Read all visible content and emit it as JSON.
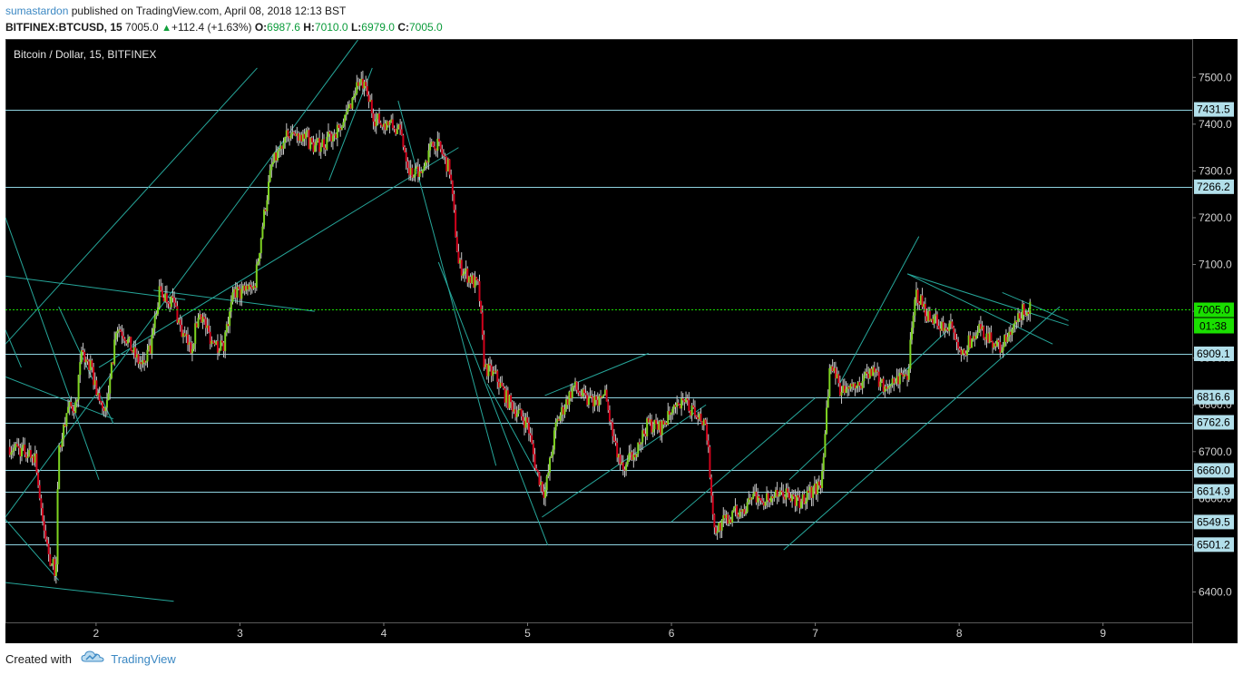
{
  "header": {
    "author": "sumastardon",
    "published_text": "published on TradingView.com, April 08, 2018 12:13 BST",
    "symbol": "BITFINEX:BTCUSD, 15",
    "last": "7005.0",
    "change": "+112.4 (+1.63%)",
    "o_label": "O:",
    "o_value": "6987.6",
    "h_label": "H:",
    "h_value": "7010.0",
    "l_label": "L:",
    "l_value": "6979.0",
    "c_label": "C:",
    "c_value": "7005.0"
  },
  "footer": {
    "created_with": "Created with",
    "brand": "TradingView"
  },
  "colors": {
    "background": "#000000",
    "bull_body": "#7ed321",
    "bear_body": "#d0021b",
    "wick": "#c8c8c8",
    "trendline": "#26a69a",
    "level_line": "#8fd3e0",
    "level_tag_bg": "#b2dfea",
    "current_price_tag": "#1adf00",
    "axis_text": "#d0d0d0"
  },
  "chart_data": {
    "type": "candlestick",
    "title": "Bitcoin / Dollar, 15, BITFINEX",
    "xlabel": "",
    "ylabel": "",
    "x_ticks": [
      "2",
      "3",
      "4",
      "5",
      "6",
      "7",
      "8",
      "9"
    ],
    "y_ticks": [
      "6400.0",
      "6500.0",
      "6600.0",
      "6700.0",
      "6800.0",
      "6900.0",
      "7000.0",
      "7100.0",
      "7200.0",
      "7300.0",
      "7400.0",
      "7500.0"
    ],
    "xlim": [
      1.37,
      9.62
    ],
    "ylim": [
      6335,
      7582
    ],
    "grid": false,
    "legend": "none",
    "current_price": "7005.0",
    "countdown": "01:38",
    "horizontal_levels": [
      "7431.5",
      "7266.2",
      "6909.1",
      "6816.6",
      "6762.6",
      "6660.0",
      "6614.9",
      "6549.5",
      "6501.2"
    ],
    "price_path": [
      [
        1.4,
        6710
      ],
      [
        1.5,
        6700
      ],
      [
        1.58,
        6690
      ],
      [
        1.62,
        6560
      ],
      [
        1.68,
        6470
      ],
      [
        1.72,
        6440
      ],
      [
        1.74,
        6700
      ],
      [
        1.8,
        6790
      ],
      [
        1.86,
        6800
      ],
      [
        1.9,
        6910
      ],
      [
        1.96,
        6880
      ],
      [
        2.04,
        6790
      ],
      [
        2.08,
        6800
      ],
      [
        2.14,
        6970
      ],
      [
        2.2,
        6950
      ],
      [
        2.26,
        6910
      ],
      [
        2.32,
        6880
      ],
      [
        2.38,
        6920
      ],
      [
        2.44,
        7040
      ],
      [
        2.54,
        7020
      ],
      [
        2.6,
        6950
      ],
      [
        2.66,
        6920
      ],
      [
        2.72,
        7000
      ],
      [
        2.8,
        6940
      ],
      [
        2.88,
        6920
      ],
      [
        2.96,
        7040
      ],
      [
        3.1,
        7050
      ],
      [
        3.16,
        7190
      ],
      [
        3.22,
        7310
      ],
      [
        3.32,
        7370
      ],
      [
        3.42,
        7380
      ],
      [
        3.52,
        7350
      ],
      [
        3.62,
        7370
      ],
      [
        3.72,
        7400
      ],
      [
        3.82,
        7490
      ],
      [
        3.86,
        7480
      ],
      [
        3.94,
        7410
      ],
      [
        4.04,
        7400
      ],
      [
        4.12,
        7380
      ],
      [
        4.18,
        7300
      ],
      [
        4.26,
        7290
      ],
      [
        4.34,
        7370
      ],
      [
        4.4,
        7340
      ],
      [
        4.46,
        7300
      ],
      [
        4.52,
        7100
      ],
      [
        4.6,
        7070
      ],
      [
        4.66,
        7050
      ],
      [
        4.7,
        6880
      ],
      [
        4.78,
        6860
      ],
      [
        4.86,
        6810
      ],
      [
        4.94,
        6780
      ],
      [
        5.0,
        6760
      ],
      [
        5.06,
        6660
      ],
      [
        5.12,
        6610
      ],
      [
        5.2,
        6760
      ],
      [
        5.32,
        6840
      ],
      [
        5.4,
        6810
      ],
      [
        5.48,
        6800
      ],
      [
        5.54,
        6820
      ],
      [
        5.6,
        6720
      ],
      [
        5.66,
        6660
      ],
      [
        5.74,
        6700
      ],
      [
        5.84,
        6760
      ],
      [
        5.92,
        6750
      ],
      [
        6.0,
        6780
      ],
      [
        6.08,
        6800
      ],
      [
        6.16,
        6790
      ],
      [
        6.24,
        6760
      ],
      [
        6.3,
        6530
      ],
      [
        6.4,
        6560
      ],
      [
        6.5,
        6580
      ],
      [
        6.6,
        6600
      ],
      [
        6.7,
        6600
      ],
      [
        6.8,
        6610
      ],
      [
        6.88,
        6590
      ],
      [
        6.96,
        6610
      ],
      [
        7.04,
        6630
      ],
      [
        7.1,
        6880
      ],
      [
        7.2,
        6820
      ],
      [
        7.32,
        6850
      ],
      [
        7.4,
        6870
      ],
      [
        7.48,
        6840
      ],
      [
        7.56,
        6850
      ],
      [
        7.64,
        6860
      ],
      [
        7.7,
        7040
      ],
      [
        7.8,
        6980
      ],
      [
        7.88,
        6970
      ],
      [
        7.94,
        6960
      ],
      [
        8.0,
        6910
      ],
      [
        8.06,
        6930
      ],
      [
        8.14,
        6960
      ],
      [
        8.2,
        6950
      ],
      [
        8.28,
        6920
      ],
      [
        8.36,
        6950
      ],
      [
        8.44,
        7000
      ],
      [
        8.5,
        7005
      ]
    ]
  }
}
